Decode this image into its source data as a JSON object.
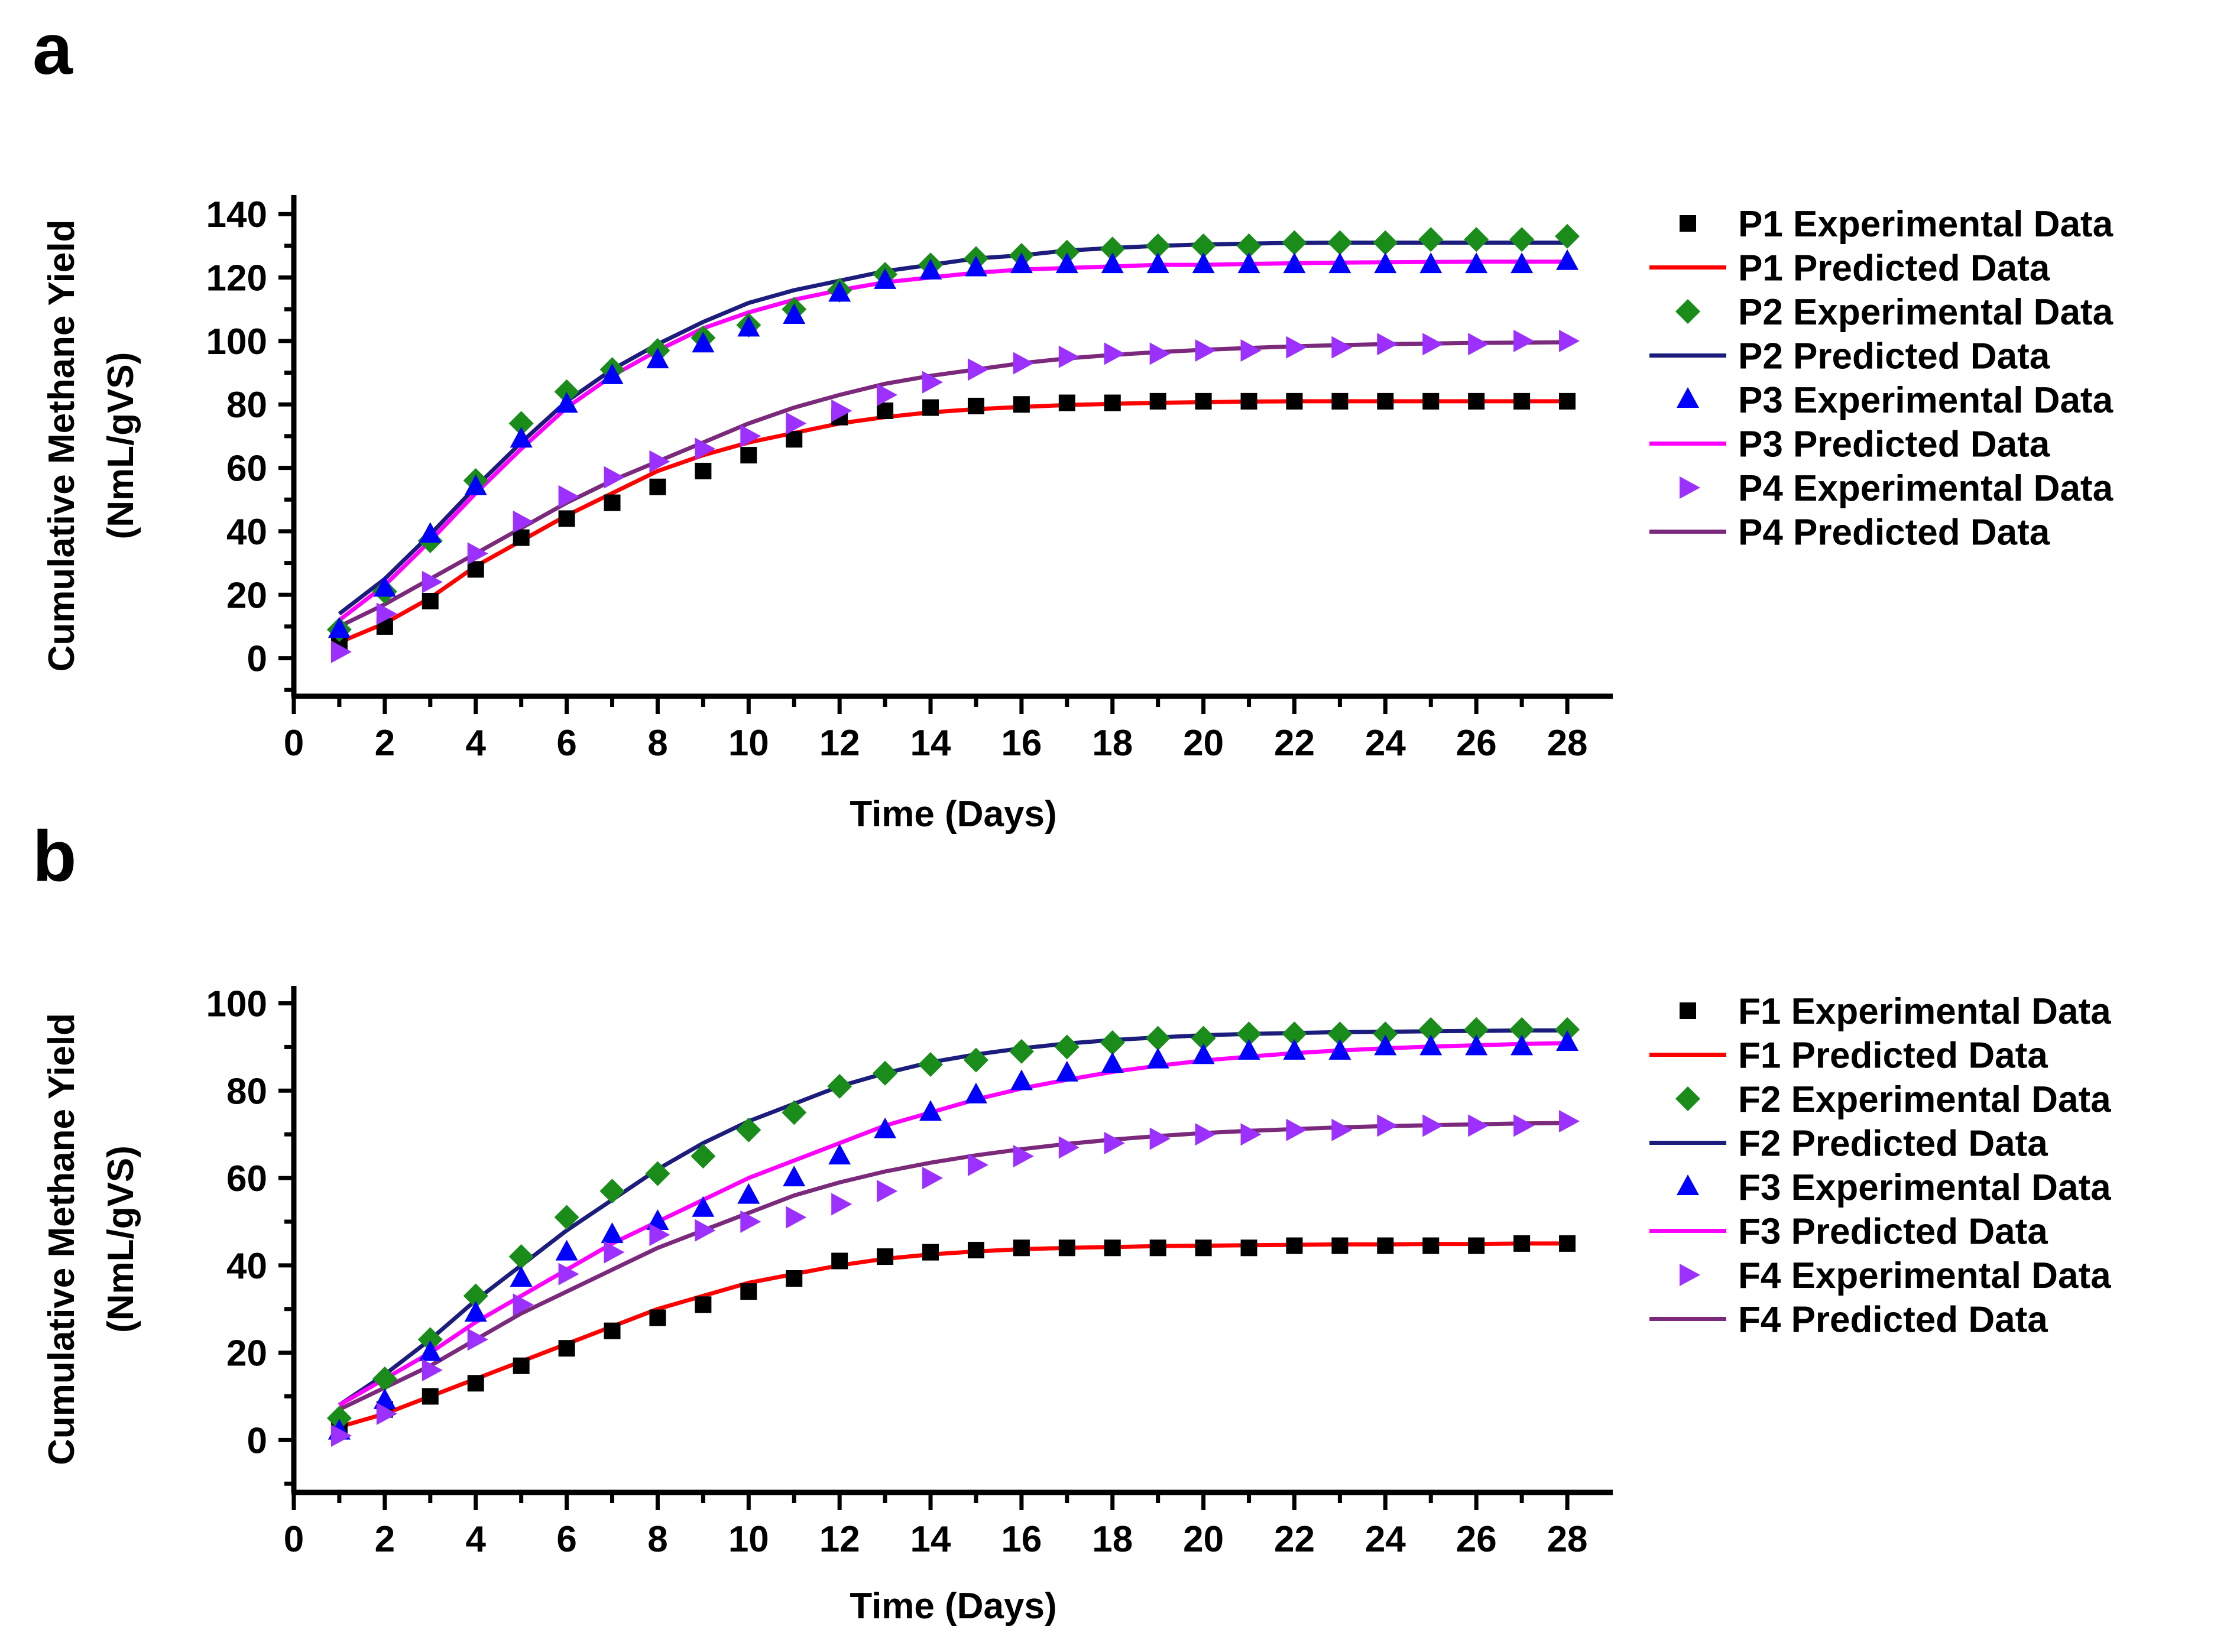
{
  "chart_data": [
    {
      "type": "scatter",
      "panel_label": "a",
      "xlabel": "Time (Days)",
      "ylabel": [
        "Cumulative Methane Yield",
        "(NmL/gVS)"
      ],
      "xlim": [
        0,
        29
      ],
      "ylim": [
        -12,
        146
      ],
      "x_ticks": [
        0,
        2,
        4,
        6,
        8,
        10,
        12,
        14,
        16,
        18,
        20,
        22,
        24,
        26,
        28
      ],
      "y_ticks": [
        0,
        20,
        40,
        60,
        80,
        100,
        120,
        140
      ],
      "x": [
        1,
        2,
        3,
        4,
        5,
        6,
        7,
        8,
        9,
        10,
        11,
        12,
        13,
        14,
        15,
        16,
        17,
        18,
        19,
        20,
        21,
        22,
        23,
        24,
        25,
        26,
        27,
        28
      ],
      "series": [
        {
          "name": "P1 Experimental Data",
          "kind": "points",
          "marker": "square",
          "color": "#000000",
          "values": [
            4,
            10,
            18,
            28,
            38,
            44,
            49,
            54,
            59,
            64,
            69,
            76,
            78,
            79,
            79.5,
            80,
            80.5,
            80.5,
            81,
            81,
            81,
            81,
            81,
            81,
            81,
            81,
            81,
            81
          ]
        },
        {
          "name": "P1 Predicted Data",
          "kind": "line",
          "color": "#ff0000",
          "values": [
            5,
            11,
            19,
            29,
            37,
            45,
            52,
            59,
            64,
            68,
            71,
            74,
            76,
            77.5,
            78.5,
            79.2,
            79.8,
            80.2,
            80.5,
            80.7,
            80.9,
            81,
            81,
            81,
            81,
            81,
            81,
            81
          ]
        },
        {
          "name": "P2 Experimental Data",
          "kind": "points",
          "marker": "diamond",
          "color": "#1a8c1a",
          "values": [
            9,
            21,
            37,
            56,
            74,
            84,
            91,
            97,
            101,
            105,
            110,
            116,
            121,
            124,
            126,
            127,
            128,
            129,
            130,
            130,
            130,
            131,
            131,
            131,
            132,
            132,
            132,
            133
          ]
        },
        {
          "name": "P2 Predicted Data",
          "kind": "line",
          "color": "#1c1c7c",
          "values": [
            14,
            25,
            39,
            54,
            68,
            81,
            91,
            99,
            106,
            112,
            116,
            119,
            122,
            124,
            126,
            127,
            128.5,
            129.3,
            130,
            130.4,
            130.7,
            130.9,
            131,
            131,
            131,
            131,
            131,
            131
          ]
        },
        {
          "name": "P3 Experimental Data",
          "kind": "points",
          "marker": "triangle-up",
          "color": "#0000ff",
          "values": [
            9,
            22,
            39,
            54,
            69,
            80,
            89,
            94,
            99,
            104,
            108,
            115,
            119,
            122,
            123,
            124,
            124,
            124,
            124,
            124,
            124,
            124,
            124,
            124,
            124,
            124,
            124,
            125
          ]
        },
        {
          "name": "P3 Predicted Data",
          "kind": "line",
          "color": "#ff00ff",
          "values": [
            12,
            23,
            37,
            52,
            66,
            79,
            89,
            97,
            104,
            109,
            113,
            116,
            118.5,
            120,
            121.5,
            122.5,
            123,
            123.5,
            124,
            124,
            124.3,
            124.5,
            124.7,
            124.8,
            124.9,
            125,
            125,
            125
          ]
        },
        {
          "name": "P4 Experimental Data",
          "kind": "points",
          "marker": "triangle-right",
          "color": "#9b30ff",
          "values": [
            2,
            14,
            24,
            33,
            43,
            51,
            57,
            62,
            66,
            70,
            74,
            78,
            83,
            87,
            91,
            93,
            95,
            96,
            96,
            97,
            97,
            98,
            98,
            99,
            99,
            99,
            100,
            100
          ]
        },
        {
          "name": "P4 Predicted Data",
          "kind": "line",
          "color": "#7b2a7b",
          "values": [
            10,
            17,
            25,
            33,
            41,
            49,
            56,
            62,
            68,
            74,
            79,
            83,
            86.5,
            89,
            91,
            93,
            94.5,
            95.6,
            96.5,
            97.2,
            97.8,
            98.3,
            98.7,
            99,
            99.2,
            99.4,
            99.5,
            99.6
          ]
        }
      ]
    },
    {
      "type": "scatter",
      "panel_label": "b",
      "xlabel": "Time (Days)",
      "ylabel": [
        "Cumulative Methane Yield",
        "(NmL/gVS)"
      ],
      "xlim": [
        0,
        29
      ],
      "ylim": [
        -12,
        104
      ],
      "x_ticks": [
        0,
        2,
        4,
        6,
        8,
        10,
        12,
        14,
        16,
        18,
        20,
        22,
        24,
        26,
        28
      ],
      "y_ticks": [
        0,
        20,
        40,
        60,
        80,
        100
      ],
      "x": [
        1,
        2,
        3,
        4,
        5,
        6,
        7,
        8,
        9,
        10,
        11,
        12,
        13,
        14,
        15,
        16,
        17,
        18,
        19,
        20,
        21,
        22,
        23,
        24,
        25,
        26,
        27,
        28
      ],
      "series": [
        {
          "name": "F1 Experimental Data",
          "kind": "points",
          "marker": "square",
          "color": "#000000",
          "values": [
            3,
            7,
            10,
            13,
            17,
            21,
            25,
            28,
            31,
            34,
            37,
            41,
            42,
            43,
            43.5,
            44,
            44,
            44,
            44,
            44,
            44,
            44.5,
            44.5,
            44.5,
            44.5,
            44.5,
            45,
            45
          ]
        },
        {
          "name": "F1 Predicted Data",
          "kind": "line",
          "color": "#ff0000",
          "values": [
            3,
            6,
            10,
            14,
            18,
            22,
            26,
            30,
            33,
            36,
            38,
            40,
            41.5,
            42.5,
            43.2,
            43.7,
            44,
            44.2,
            44.4,
            44.5,
            44.6,
            44.7,
            44.8,
            44.8,
            44.9,
            44.9,
            45,
            45
          ]
        },
        {
          "name": "F2 Experimental Data",
          "kind": "points",
          "marker": "diamond",
          "color": "#1a8c1a",
          "values": [
            5,
            14,
            23,
            33,
            42,
            51,
            57,
            61,
            65,
            71,
            75,
            81,
            84,
            86,
            87,
            89,
            90,
            91,
            92,
            92,
            93,
            93,
            93,
            93,
            94,
            94,
            94,
            94
          ]
        },
        {
          "name": "F2 Predicted Data",
          "kind": "line",
          "color": "#1c1c7c",
          "values": [
            8,
            15,
            23,
            32,
            40,
            48,
            55,
            62,
            68,
            73,
            77,
            81,
            84,
            86.5,
            88.3,
            89.7,
            90.8,
            91.6,
            92.2,
            92.7,
            93,
            93.2,
            93.4,
            93.5,
            93.6,
            93.7,
            93.8,
            93.8
          ]
        },
        {
          "name": "F3 Experimental Data",
          "kind": "points",
          "marker": "triangle-up",
          "color": "#0000ff",
          "values": [
            2,
            9,
            20,
            29,
            37,
            43,
            47,
            50,
            53,
            56,
            60,
            65,
            71,
            75,
            79,
            82,
            84,
            86,
            87,
            88,
            89,
            89,
            89,
            90,
            90,
            90,
            90,
            91
          ]
        },
        {
          "name": "F3 Predicted Data",
          "kind": "line",
          "color": "#ff00ff",
          "values": [
            8,
            14,
            20,
            27,
            33,
            39,
            45,
            50,
            55,
            60,
            64,
            68,
            72,
            75,
            78,
            80.5,
            82.5,
            84.3,
            85.7,
            86.9,
            87.8,
            88.6,
            89.2,
            89.7,
            90.1,
            90.4,
            90.7,
            90.9
          ]
        },
        {
          "name": "F4 Experimental Data",
          "kind": "points",
          "marker": "triangle-right",
          "color": "#9b30ff",
          "values": [
            1,
            6,
            16,
            23,
            31,
            38,
            43,
            47,
            48,
            50,
            51,
            54,
            57,
            60,
            63,
            65,
            67,
            68,
            69,
            70,
            70,
            71,
            71,
            72,
            72,
            72,
            72,
            73
          ]
        },
        {
          "name": "F4 Predicted Data",
          "kind": "line",
          "color": "#7b2a7b",
          "values": [
            7,
            12,
            17,
            23,
            29,
            34,
            39,
            44,
            48,
            52,
            56,
            59,
            61.5,
            63.5,
            65.2,
            66.6,
            67.8,
            68.8,
            69.6,
            70.3,
            70.8,
            71.2,
            71.6,
            71.9,
            72.1,
            72.3,
            72.5,
            72.6
          ]
        }
      ]
    }
  ]
}
